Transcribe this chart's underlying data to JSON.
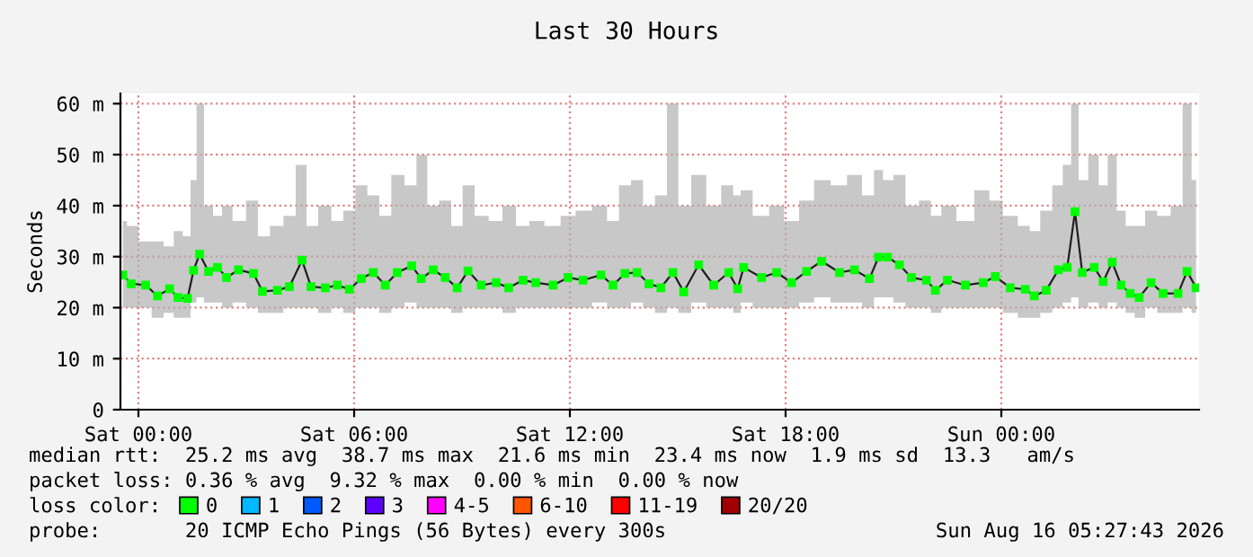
{
  "chart_data": {
    "type": "line",
    "title": "Last 30 Hours",
    "ylabel": "Seconds",
    "x": [
      "2026-08-14T23:34",
      "2026-08-14T23:48",
      "2026-08-15T00:12",
      "2026-08-15T00:32",
      "2026-08-15T00:52",
      "2026-08-15T01:06",
      "2026-08-15T01:22",
      "2026-08-15T01:32",
      "2026-08-15T01:42",
      "2026-08-15T01:57",
      "2026-08-15T02:12",
      "2026-08-15T02:27",
      "2026-08-15T02:47",
      "2026-08-15T03:12",
      "2026-08-15T03:27",
      "2026-08-15T03:52",
      "2026-08-15T04:12",
      "2026-08-15T04:33",
      "2026-08-15T04:48",
      "2026-08-15T05:12",
      "2026-08-15T05:32",
      "2026-08-15T05:52",
      "2026-08-15T06:12",
      "2026-08-15T06:32",
      "2026-08-15T06:52",
      "2026-08-15T07:12",
      "2026-08-15T07:36",
      "2026-08-15T07:52",
      "2026-08-15T08:12",
      "2026-08-15T08:32",
      "2026-08-15T08:52",
      "2026-08-15T09:10",
      "2026-08-15T09:32",
      "2026-08-15T09:57",
      "2026-08-15T10:18",
      "2026-08-15T10:42",
      "2026-08-15T11:03",
      "2026-08-15T11:32",
      "2026-08-15T11:57",
      "2026-08-15T12:22",
      "2026-08-15T12:52",
      "2026-08-15T13:12",
      "2026-08-15T13:32",
      "2026-08-15T13:52",
      "2026-08-15T14:12",
      "2026-08-15T14:32",
      "2026-08-15T14:52",
      "2026-08-15T15:10",
      "2026-08-15T15:35",
      "2026-08-15T16:00",
      "2026-08-15T16:25",
      "2026-08-15T16:40",
      "2026-08-15T16:50",
      "2026-08-15T17:20",
      "2026-08-15T17:45",
      "2026-08-15T18:10",
      "2026-08-15T18:35",
      "2026-08-15T19:00",
      "2026-08-15T19:30",
      "2026-08-15T19:55",
      "2026-08-15T20:20",
      "2026-08-15T20:35",
      "2026-08-15T20:50",
      "2026-08-15T21:10",
      "2026-08-15T21:30",
      "2026-08-15T21:55",
      "2026-08-15T22:10",
      "2026-08-15T22:30",
      "2026-08-15T23:00",
      "2026-08-15T23:30",
      "2026-08-15T23:50",
      "2026-08-16T00:15",
      "2026-08-16T00:40",
      "2026-08-16T00:55",
      "2026-08-16T01:15",
      "2026-08-16T01:35",
      "2026-08-16T01:50",
      "2026-08-16T02:03",
      "2026-08-16T02:15",
      "2026-08-16T02:35",
      "2026-08-16T02:50",
      "2026-08-16T03:05",
      "2026-08-16T03:20",
      "2026-08-16T03:35",
      "2026-08-16T03:50",
      "2026-08-16T04:10",
      "2026-08-16T04:30",
      "2026-08-16T04:55",
      "2026-08-16T05:10",
      "2026-08-16T05:25"
    ],
    "series": [
      {
        "name": "0",
        "color": "#00ff00",
        "values": [
          26.4,
          24.7,
          24.4,
          22.3,
          23.7,
          22.0,
          21.8,
          27.3,
          30.5,
          27.1,
          27.9,
          25.9,
          27.4,
          26.7,
          23.2,
          23.4,
          24.1,
          29.3,
          24.1,
          23.9,
          24.4,
          23.6,
          25.7,
          26.9,
          24.4,
          26.9,
          28.2,
          25.7,
          27.4,
          25.9,
          23.9,
          27.2,
          24.4,
          24.9,
          23.9,
          25.4,
          24.9,
          24.4,
          25.9,
          25.4,
          26.4,
          24.4,
          26.7,
          26.9,
          24.7,
          23.9,
          26.9,
          23.1,
          28.4,
          24.4,
          26.9,
          23.7,
          27.9,
          25.9,
          26.9,
          24.9,
          27.1,
          29.1,
          26.9,
          27.4,
          25.7,
          29.9,
          29.9,
          28.4,
          25.9,
          25.4,
          23.4,
          25.4,
          24.4,
          24.9,
          26.1,
          23.9,
          23.6,
          22.3,
          23.4,
          27.4,
          27.9,
          38.8,
          26.9,
          27.9,
          25.1,
          28.9,
          24.4,
          22.8,
          22.0,
          24.9,
          22.8,
          22.8,
          27.1,
          23.9
        ],
        "lower": [
          20,
          20,
          20,
          18,
          19,
          18,
          18,
          21,
          22,
          21,
          21,
          20,
          21,
          20,
          19,
          19,
          20,
          20,
          20,
          19,
          20,
          19,
          20,
          20,
          19,
          20,
          21,
          20,
          20,
          20,
          19,
          20,
          20,
          20,
          19,
          20,
          20,
          20,
          20,
          20,
          21,
          20,
          20,
          21,
          20,
          19,
          20,
          19,
          21,
          20,
          20,
          19,
          21,
          20,
          20,
          20,
          21,
          22,
          21,
          21,
          20,
          22,
          22,
          21,
          20,
          20,
          19,
          20,
          20,
          20,
          20,
          19,
          18,
          18,
          19,
          20,
          21,
          22,
          20,
          21,
          20,
          21,
          20,
          19,
          18,
          20,
          19,
          19,
          20,
          19
        ],
        "upper": [
          37,
          36,
          33,
          33,
          32,
          35,
          34,
          45,
          60,
          40,
          38,
          40,
          37,
          41,
          34,
          36,
          38,
          48,
          36,
          40,
          37,
          39,
          44,
          42,
          38,
          46,
          44,
          50,
          40,
          41,
          36,
          44,
          38,
          37,
          40,
          36,
          37,
          36,
          38,
          39,
          40,
          37,
          44,
          45,
          40,
          42,
          60,
          40,
          46,
          40,
          44,
          42,
          43,
          38,
          40,
          37,
          41,
          45,
          44,
          46,
          42,
          47,
          45,
          46,
          40,
          41,
          38,
          40,
          37,
          43,
          41,
          38,
          36,
          35,
          39,
          44,
          48,
          60,
          45,
          50,
          44,
          50,
          39,
          36,
          36,
          39,
          38,
          40,
          60,
          45
        ]
      },
      {
        "name": "1",
        "color": "#00b8ff",
        "values": [
          null,
          null,
          null,
          null,
          null,
          null,
          null,
          null,
          null,
          null,
          null,
          null,
          null,
          null,
          null,
          null,
          null,
          null,
          null,
          null,
          null,
          null,
          null,
          null,
          null,
          null,
          null,
          null,
          null,
          null,
          null,
          null,
          null,
          null,
          null,
          null,
          null,
          null,
          null,
          null,
          null,
          null,
          null,
          null,
          null,
          null,
          null,
          null,
          null,
          null,
          null,
          null,
          null,
          null,
          null,
          null,
          null,
          null,
          null,
          null,
          null,
          null,
          null,
          null,
          null,
          null,
          null,
          null,
          null,
          null,
          null,
          null,
          null,
          null,
          null,
          null,
          null,
          null,
          null,
          null,
          null,
          null,
          null,
          null,
          null,
          null,
          null,
          null,
          null,
          null
        ]
      },
      {
        "name": "2",
        "color": "#0059ff",
        "values": [
          null,
          null,
          null,
          null,
          null,
          null,
          null,
          null,
          null,
          null,
          null,
          null,
          null,
          null,
          null,
          null,
          null,
          null,
          null,
          null,
          null,
          null,
          null,
          null,
          null,
          null,
          null,
          null,
          null,
          null,
          null,
          null,
          null,
          null,
          null,
          null,
          null,
          null,
          null,
          null,
          null,
          null,
          null,
          null,
          null,
          null,
          null,
          null,
          null,
          null,
          null,
          null,
          null,
          null,
          null,
          null,
          null,
          null,
          null,
          null,
          null,
          null,
          null,
          null,
          null,
          null,
          null,
          null,
          null,
          null,
          null,
          null,
          null,
          null,
          null,
          null,
          null,
          null,
          null,
          null,
          null,
          null,
          null,
          null,
          null,
          null,
          null,
          null,
          null,
          null
        ]
      },
      {
        "name": "3",
        "color": "#5e00ff",
        "values": [
          null,
          null,
          null,
          null,
          null,
          null,
          null,
          null,
          null,
          null,
          null,
          null,
          null,
          null,
          null,
          null,
          null,
          null,
          null,
          null,
          null,
          null,
          null,
          null,
          null,
          null,
          null,
          null,
          null,
          null,
          null,
          null,
          null,
          null,
          null,
          null,
          null,
          null,
          null,
          null,
          null,
          null,
          null,
          null,
          null,
          null,
          null,
          null,
          null,
          null,
          null,
          null,
          null,
          null,
          null,
          null,
          null,
          null,
          null,
          null,
          null,
          null,
          null,
          null,
          null,
          null,
          null,
          null,
          null,
          null,
          null,
          null,
          null,
          null,
          null,
          null,
          null,
          null,
          null,
          null,
          null,
          null,
          null,
          null,
          null,
          null,
          null,
          null,
          null,
          null
        ]
      },
      {
        "name": "4-5",
        "color": "#ff00ff",
        "values": [
          null,
          null,
          null,
          null,
          null,
          null,
          null,
          null,
          null,
          null,
          null,
          null,
          null,
          null,
          null,
          null,
          null,
          null,
          null,
          null,
          null,
          null,
          null,
          null,
          null,
          null,
          null,
          null,
          null,
          null,
          null,
          null,
          null,
          null,
          null,
          null,
          null,
          null,
          null,
          null,
          null,
          null,
          null,
          null,
          null,
          null,
          null,
          null,
          null,
          null,
          null,
          null,
          null,
          null,
          null,
          null,
          null,
          null,
          null,
          null,
          null,
          null,
          null,
          null,
          null,
          null,
          null,
          null,
          null,
          null,
          null,
          null,
          null,
          null,
          null,
          null,
          null,
          null,
          null,
          null,
          null,
          null,
          null,
          null,
          null,
          null,
          null,
          null,
          null,
          null
        ]
      },
      {
        "name": "6-10",
        "color": "#ff5500",
        "values": [
          null,
          null,
          null,
          null,
          null,
          null,
          null,
          null,
          null,
          null,
          null,
          null,
          null,
          null,
          null,
          null,
          null,
          null,
          null,
          null,
          null,
          null,
          null,
          null,
          null,
          null,
          null,
          null,
          null,
          null,
          null,
          null,
          null,
          null,
          null,
          null,
          null,
          null,
          null,
          null,
          null,
          null,
          null,
          null,
          null,
          null,
          null,
          null,
          null,
          null,
          null,
          null,
          null,
          null,
          null,
          null,
          null,
          null,
          null,
          null,
          null,
          null,
          null,
          null,
          null,
          null,
          null,
          null,
          null,
          null,
          null,
          null,
          null,
          null,
          null,
          null,
          null,
          null,
          null,
          null,
          null,
          null,
          null,
          null,
          null,
          null,
          null,
          null,
          null,
          null
        ]
      },
      {
        "name": "11-19",
        "color": "#ff0000",
        "values": [
          null,
          null,
          null,
          null,
          null,
          null,
          null,
          null,
          null,
          null,
          null,
          null,
          null,
          null,
          null,
          null,
          null,
          null,
          null,
          null,
          null,
          null,
          null,
          null,
          null,
          null,
          null,
          null,
          null,
          null,
          null,
          null,
          null,
          null,
          null,
          null,
          null,
          null,
          null,
          null,
          null,
          null,
          null,
          null,
          null,
          null,
          null,
          null,
          null,
          null,
          null,
          null,
          null,
          null,
          null,
          null,
          null,
          null,
          null,
          null,
          null,
          null,
          null,
          null,
          null,
          null,
          null,
          null,
          null,
          null,
          null,
          null,
          null,
          null,
          null,
          null,
          null,
          null,
          null,
          null,
          null,
          null,
          null,
          null,
          null,
          null,
          null,
          null,
          null,
          null
        ]
      },
      {
        "name": "20/20",
        "color": "#a00000",
        "values": [
          null,
          null,
          null,
          null,
          null,
          null,
          null,
          null,
          null,
          null,
          null,
          null,
          null,
          null,
          null,
          null,
          null,
          null,
          null,
          null,
          null,
          null,
          null,
          null,
          null,
          null,
          null,
          null,
          null,
          null,
          null,
          null,
          null,
          null,
          null,
          null,
          null,
          null,
          null,
          null,
          null,
          null,
          null,
          null,
          null,
          null,
          null,
          null,
          null,
          null,
          null,
          null,
          null,
          null,
          null,
          null,
          null,
          null,
          null,
          null,
          null,
          null,
          null,
          null,
          null,
          null,
          null,
          null,
          null,
          null,
          null,
          null,
          null,
          null,
          null,
          null,
          null,
          null,
          null,
          null,
          null,
          null,
          null,
          null,
          null,
          null,
          null,
          null,
          null,
          null
        ]
      }
    ],
    "xlim": [
      "2026-08-14T23:30",
      "2026-08-16T05:30"
    ],
    "ylim": [
      0,
      62
    ],
    "xticks": [
      {
        "value": "2026-08-15T00:00",
        "label": "Sat 00:00"
      },
      {
        "value": "2026-08-15T06:00",
        "label": "Sat 06:00"
      },
      {
        "value": "2026-08-15T12:00",
        "label": "Sat 12:00"
      },
      {
        "value": "2026-08-15T18:00",
        "label": "Sat 18:00"
      },
      {
        "value": "2026-08-16T00:00",
        "label": "Sun 00:00"
      }
    ],
    "yticks": [
      0,
      {
        "value": 10,
        "label": "10 m"
      },
      {
        "value": 20,
        "label": "20 m"
      },
      {
        "value": 30,
        "label": "30 m"
      },
      {
        "value": 40,
        "label": "40 m"
      },
      {
        "value": 50,
        "label": "50 m"
      },
      {
        "value": 60,
        "label": "60 m"
      }
    ],
    "grid": true,
    "marker": "square",
    "legend": "bottom",
    "annotations": [
      "median rtt:  25.2 ms avg  38.7 ms max  21.6 ms min  23.4 ms now  1.9 ms sd  13.3   am/s",
      "packet loss: 0.36 % avg  9.32 % max  0.00 % min  0.00 % now",
      "loss color:",
      "probe:       20 ICMP Echo Pings (56 Bytes) every 300s",
      "Sun Aug 16 05:27:43 2026"
    ]
  }
}
